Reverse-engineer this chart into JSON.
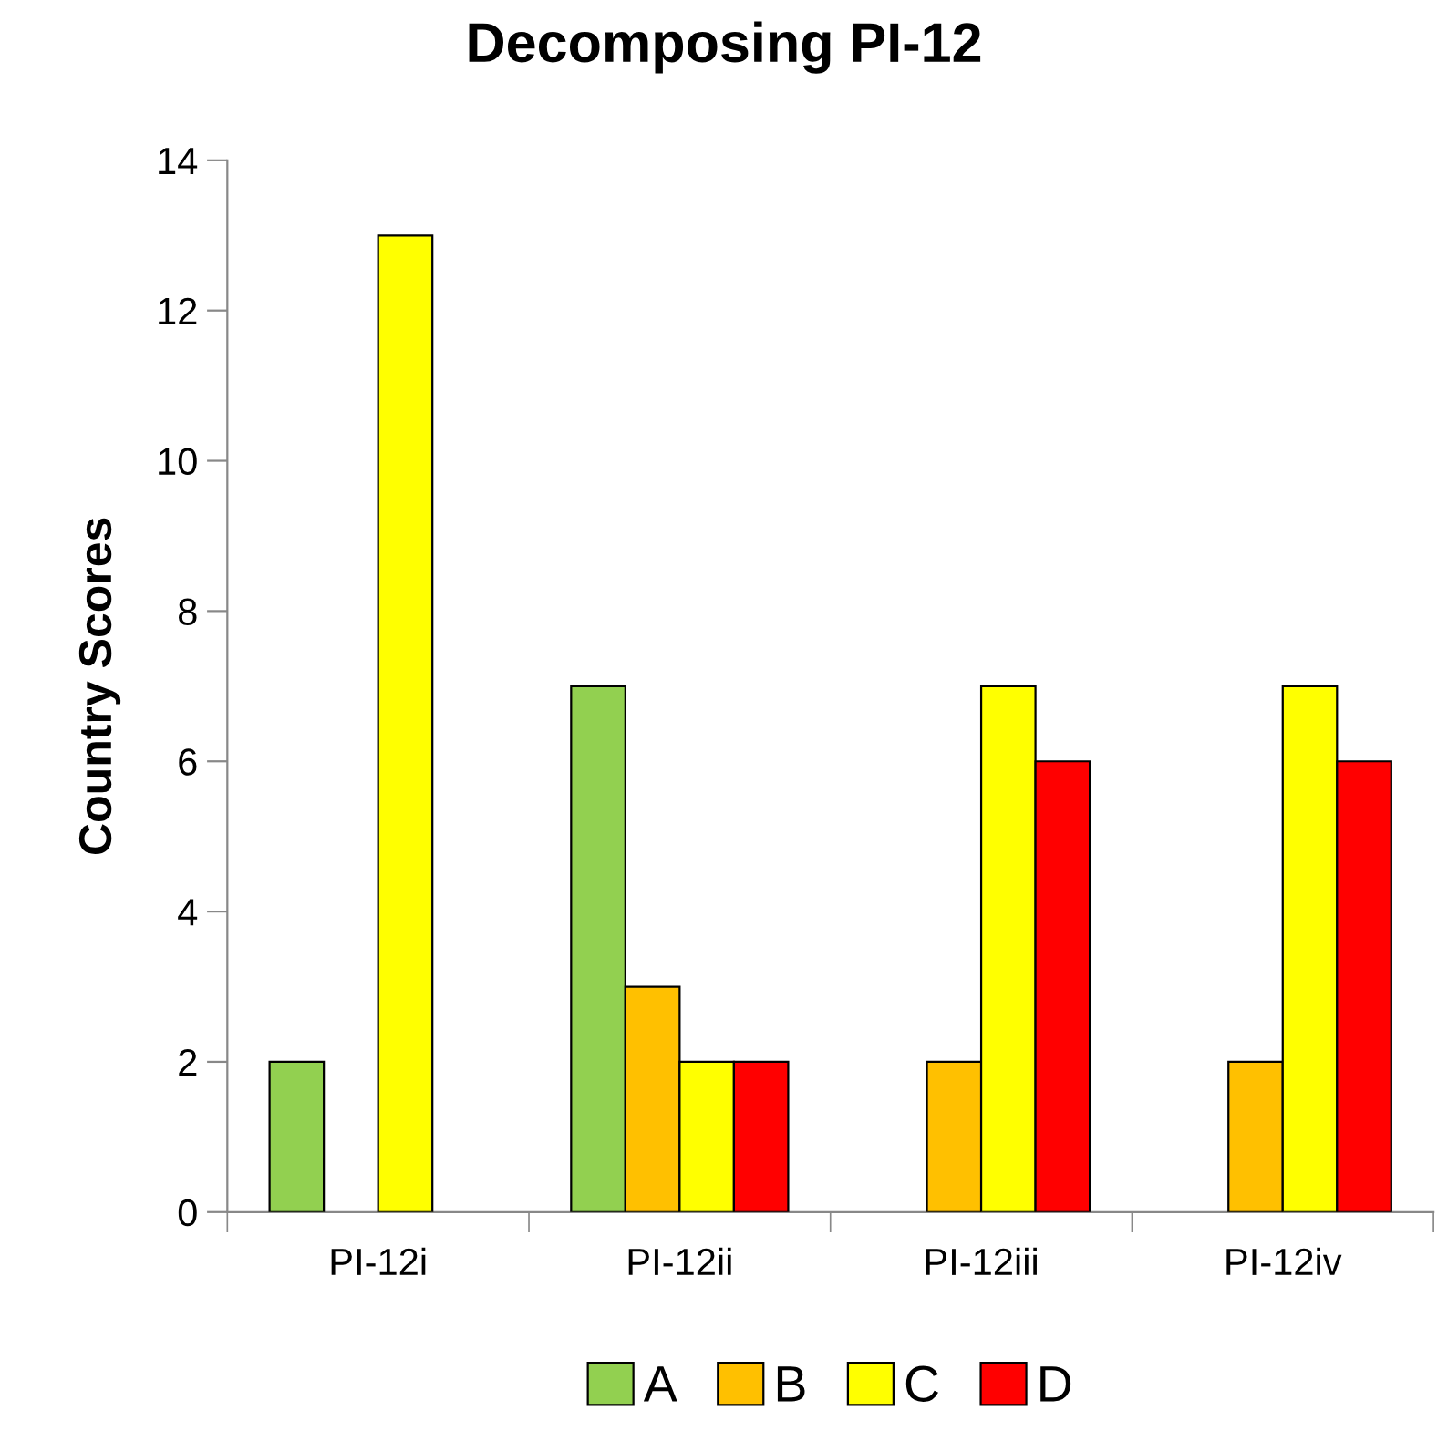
{
  "chart_data": {
    "type": "bar",
    "title": "Decomposing PI-12",
    "ylabel": "Country Scores",
    "categories": [
      "PI-12i",
      "PI-12ii",
      "PI-12iii",
      "PI-12iv"
    ],
    "series": [
      {
        "name": "A",
        "color": "#92d050",
        "values": [
          2,
          7,
          0,
          0
        ]
      },
      {
        "name": "B",
        "color": "#ffc000",
        "values": [
          0,
          3,
          2,
          2
        ]
      },
      {
        "name": "C",
        "color": "#ffff00",
        "values": [
          13,
          2,
          7,
          7
        ]
      },
      {
        "name": "D",
        "color": "#ff0000",
        "values": [
          0,
          2,
          6,
          6
        ]
      }
    ],
    "ylim": [
      0,
      14
    ],
    "yticks": [
      0,
      2,
      4,
      6,
      8,
      10,
      12,
      14
    ],
    "grid": false,
    "legend": "bottom"
  }
}
